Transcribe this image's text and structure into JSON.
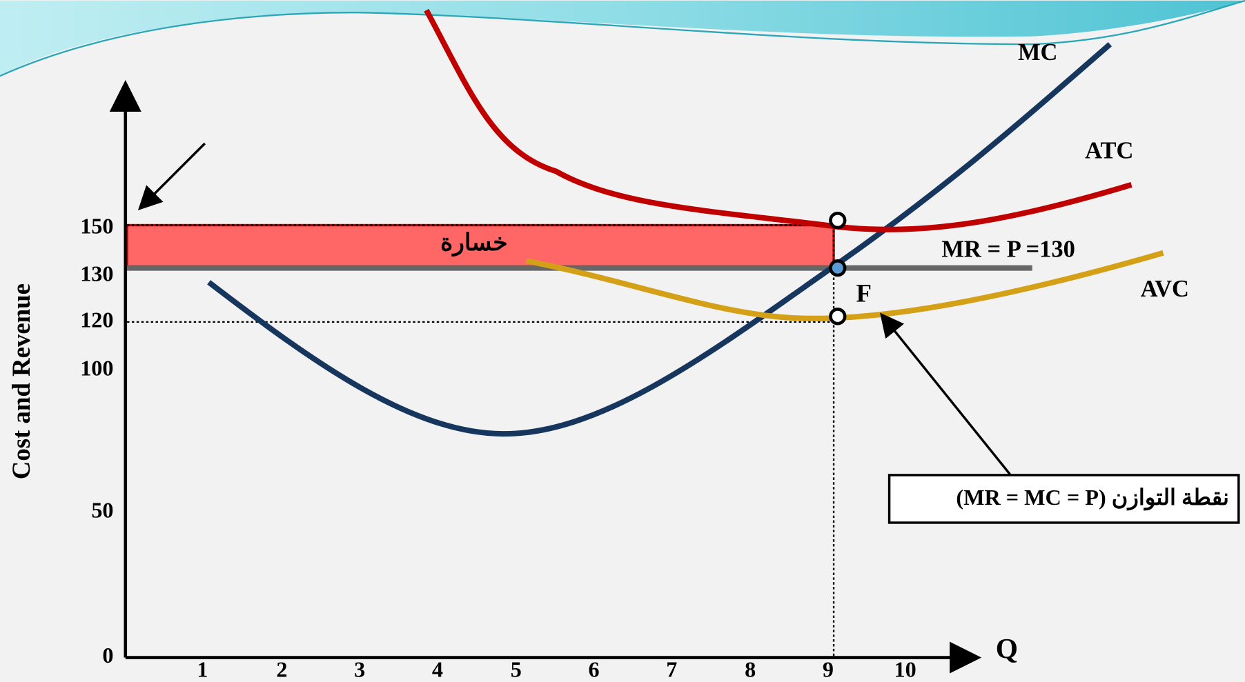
{
  "diagram": {
    "y_axis_label": "Cost and Revenue",
    "y_ticks": [
      "150",
      "130",
      "120",
      "100",
      "50",
      "0"
    ],
    "x_ticks": [
      "1",
      "2",
      "3",
      "4",
      "5",
      "6",
      "7",
      "8",
      "9",
      "10"
    ],
    "x_axis_label": "Q",
    "curve_labels": {
      "mc": "MC",
      "atc": "ATC",
      "avc": "AVC",
      "mr": "MR = P =130"
    },
    "loss_label": "خسارة",
    "point_label": "F",
    "callout": "نقطة التوازن (MR = MC = P)"
  }
}
